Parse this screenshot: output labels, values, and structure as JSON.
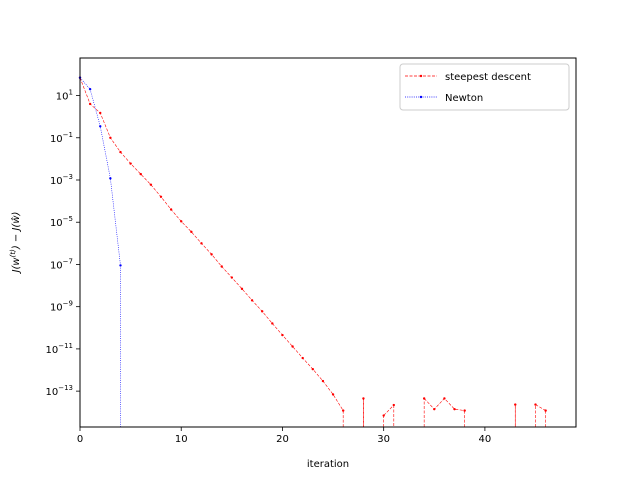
{
  "chart_data": {
    "type": "line",
    "xlabel": "iteration",
    "ylabel": "J(w^(t)) − J(ŵ)",
    "yscale": "log",
    "xlim": [
      0,
      49
    ],
    "ylim": [
      2e-15,
      600
    ],
    "xticks": [
      0,
      10,
      20,
      30,
      40
    ],
    "yticks": [
      {
        "value": 10,
        "label": "10^1"
      },
      {
        "value": 0.1,
        "label": "10^-1"
      },
      {
        "value": 0.001,
        "label": "10^-3"
      },
      {
        "value": 1e-05,
        "label": "10^-5"
      },
      {
        "value": 1e-07,
        "label": "10^-7"
      },
      {
        "value": 1e-09,
        "label": "10^-9"
      },
      {
        "value": 1e-11,
        "label": "10^-11"
      },
      {
        "value": 1e-13,
        "label": "10^-13"
      }
    ],
    "legend_position": "top-right",
    "grid": false,
    "series": [
      {
        "name": "steepest descent",
        "color": "#ff0000",
        "linestyle": "dashed",
        "segments": [
          [
            [
              0,
              70
            ],
            [
              1,
              4
            ],
            [
              2,
              1.5
            ],
            [
              3,
              0.1
            ],
            [
              4,
              0.021
            ],
            [
              5,
              0.006
            ],
            [
              6,
              0.0019
            ],
            [
              7,
              0.0006
            ],
            [
              8,
              0.00016
            ],
            [
              9,
              4e-05
            ],
            [
              10,
              1.1e-05
            ],
            [
              11,
              3.5e-06
            ],
            [
              12,
              1e-06
            ],
            [
              13,
              3e-07
            ],
            [
              14,
              8e-08
            ],
            [
              15,
              2.4e-08
            ],
            [
              16,
              7e-09
            ],
            [
              17,
              2e-09
            ],
            [
              18,
              6e-10
            ],
            [
              19,
              1.6e-10
            ],
            [
              20,
              4.5e-11
            ],
            [
              21,
              1.3e-11
            ],
            [
              22,
              3.7e-12
            ],
            [
              23,
              1.1e-12
            ],
            [
              24,
              3e-13
            ],
            [
              25,
              7e-14
            ],
            [
              26,
              1.2e-14
            ]
          ],
          [
            [
              28,
              4.5e-14
            ]
          ],
          [
            [
              30,
              7e-15
            ],
            [
              31,
              2.2e-14
            ]
          ],
          [
            [
              34,
              4.5e-14
            ],
            [
              35,
              1.4e-14
            ],
            [
              36,
              4.5e-14
            ],
            [
              37,
              1.4e-14
            ],
            [
              38,
              1.2e-14
            ]
          ],
          [
            [
              43,
              2.3e-14
            ]
          ],
          [
            [
              45,
              2.3e-14
            ],
            [
              46,
              1.2e-14
            ]
          ]
        ]
      },
      {
        "name": "Newton",
        "color": "#0000ff",
        "linestyle": "dotted",
        "segments": [
          [
            [
              0,
              70
            ],
            [
              1,
              20
            ],
            [
              2,
              0.35
            ],
            [
              3,
              0.0012
            ],
            [
              4,
              9e-08
            ]
          ]
        ],
        "drop_to_bottom_at": 4
      }
    ]
  }
}
